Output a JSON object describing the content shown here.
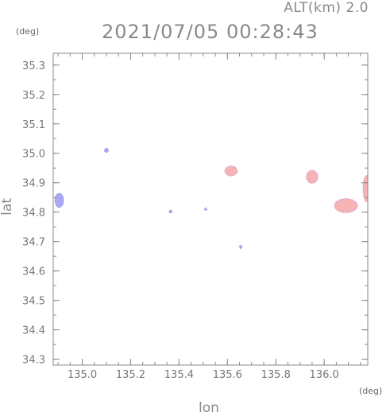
{
  "header": {
    "altitude": "ALT(km) 2.0",
    "timestamp": "2021/07/05 00:28:43"
  },
  "chart_data": {
    "type": "scatter",
    "title": "2021/07/05 00:28:43",
    "xlabel": "lon",
    "ylabel": "lat",
    "x_unit": "(deg)",
    "y_unit": "(deg)",
    "xlim": [
      134.88,
      136.18
    ],
    "ylim": [
      34.28,
      35.34
    ],
    "x_ticks": [
      135.0,
      135.2,
      135.4,
      135.6,
      135.8,
      136.0
    ],
    "x_tick_labels": [
      "135.0",
      "135.2",
      "135.4",
      "135.6",
      "135.8",
      "136.0"
    ],
    "y_ticks": [
      34.3,
      34.4,
      34.5,
      34.6,
      34.7,
      34.8,
      34.9,
      35.0,
      35.1,
      35.2,
      35.3
    ],
    "y_tick_labels": [
      "34.3",
      "34.4",
      "34.5",
      "34.6",
      "34.7",
      "34.8",
      "34.9",
      "35.0",
      "35.1",
      "35.2",
      "35.3"
    ],
    "grid": false,
    "colors": {
      "weak": "#aaaaf4",
      "moderate": "#f6b4b4",
      "edge": "#6060d0",
      "axis": "#888888"
    },
    "echoes": [
      {
        "lon": 134.905,
        "lat": 34.84,
        "rlon": 0.018,
        "rlat": 0.024,
        "level": "weak"
      },
      {
        "lon": 135.1,
        "lat": 35.01,
        "rlon": 0.008,
        "rlat": 0.007,
        "level": "weak"
      },
      {
        "lon": 135.365,
        "lat": 34.802,
        "rlon": 0.006,
        "rlat": 0.005,
        "level": "weak"
      },
      {
        "lon": 135.51,
        "lat": 34.81,
        "rlon": 0.004,
        "rlat": 0.004,
        "level": "weak"
      },
      {
        "lon": 135.655,
        "lat": 34.682,
        "rlon": 0.005,
        "rlat": 0.006,
        "level": "weak"
      },
      {
        "lon": 135.615,
        "lat": 34.94,
        "rlon": 0.026,
        "rlat": 0.017,
        "level": "moderate"
      },
      {
        "lon": 135.95,
        "lat": 34.92,
        "rlon": 0.024,
        "rlat": 0.022,
        "level": "moderate"
      },
      {
        "lon": 136.09,
        "lat": 34.822,
        "rlon": 0.048,
        "rlat": 0.024,
        "level": "moderate"
      },
      {
        "lon": 136.175,
        "lat": 34.88,
        "rlon": 0.015,
        "rlat": 0.045,
        "level": "moderate"
      }
    ]
  }
}
